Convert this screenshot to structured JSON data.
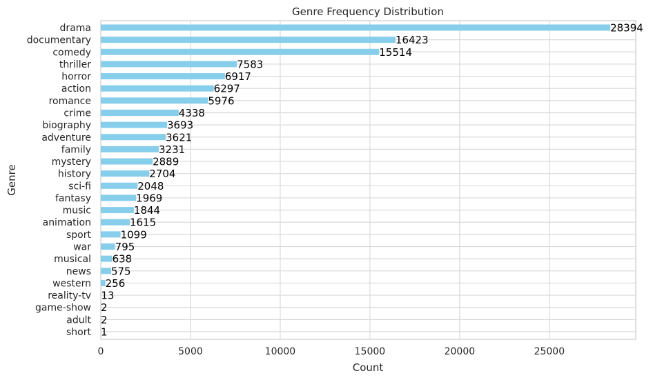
{
  "chart_data": {
    "type": "bar",
    "orientation": "horizontal",
    "title": "Genre Frequency Distribution",
    "xlabel": "Count",
    "ylabel": "Genre",
    "xlim": [
      0,
      29814
    ],
    "xticks": [
      0,
      5000,
      10000,
      15000,
      20000,
      25000
    ],
    "grid": true,
    "bar_color": "#87ceeb",
    "categories": [
      "drama",
      "documentary",
      "comedy",
      "thriller",
      "horror",
      "action",
      "romance",
      "crime",
      "biography",
      "adventure",
      "family",
      "mystery",
      "history",
      "sci-fi",
      "fantasy",
      "music",
      "animation",
      "sport",
      "war",
      "musical",
      "news",
      "western",
      "reality-tv",
      "game-show",
      "adult",
      "short"
    ],
    "values": [
      28394,
      16423,
      15514,
      7583,
      6917,
      6297,
      5976,
      4338,
      3693,
      3621,
      3231,
      2889,
      2704,
      2048,
      1969,
      1844,
      1615,
      1099,
      795,
      638,
      575,
      256,
      13,
      2,
      2,
      1
    ]
  }
}
